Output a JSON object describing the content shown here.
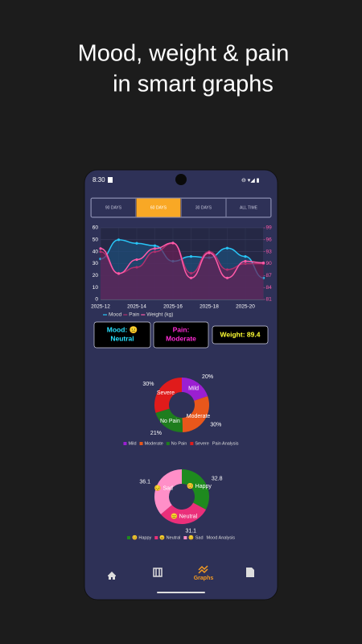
{
  "header": {
    "lines": [
      "Mood, weight & pain",
      "in smart graphs"
    ]
  },
  "status": {
    "time": "8:30"
  },
  "tabs": {
    "items": [
      "90 DAYS",
      "60 DAYS",
      "30 DAYS",
      "ALL TIME"
    ],
    "active": 1
  },
  "chart": {
    "type": "line",
    "categories": [
      "2025-12",
      null,
      "2025-14",
      null,
      "2025-16",
      null,
      "2025-18",
      null,
      "2025-20",
      null
    ],
    "series": [
      {
        "name": "Mood",
        "color": "#29c5f6",
        "values": [
          34,
          50,
          47,
          45,
          32,
          36,
          35,
          43,
          36,
          18
        ],
        "axis": "y",
        "fill": "#1d4f7a"
      },
      {
        "name": "Pain",
        "color": "#b0306e",
        "values": [
          40,
          22,
          27,
          40,
          47,
          22,
          40,
          25,
          30,
          30
        ],
        "axis": "y",
        "fill": "#6a1f55"
      },
      {
        "name": "Weight (kg)",
        "color": "#ff5aa8",
        "values": [
          93.8,
          87.5,
          91,
          93.8,
          95.2,
          86.4,
          92.7,
          86.4,
          90.6,
          90.2
        ],
        "axis": "y2"
      }
    ],
    "ylim": [
      0,
      60
    ],
    "yticks": [
      0,
      10,
      20,
      30,
      40,
      50,
      60
    ],
    "y2lim": [
      81,
      99
    ],
    "y2ticks": [
      81,
      84,
      87,
      90,
      93,
      96,
      99
    ],
    "y2color": "#ff5aa8",
    "grid": true
  },
  "stats": [
    {
      "text": "Mood: 😐 Neutral",
      "color": "#29e0ff"
    },
    {
      "text": "Pain: Moderate",
      "color": "#ff2bd6"
    },
    {
      "text": "Weight: 89.4",
      "color": "#ffff33"
    }
  ],
  "pies": [
    {
      "type": "pie",
      "title": "Pain Analysis",
      "categories": [
        "Mild",
        "Moderate",
        "No Pain",
        "Severe"
      ],
      "values": [
        20,
        30,
        21,
        30
      ],
      "value_labels": [
        "20%",
        "30%",
        "21%",
        "30%"
      ],
      "colors": [
        "#9b1fd1",
        "#e8571b",
        "#1e7d1e",
        "#e01b1b"
      ]
    },
    {
      "type": "pie",
      "title": "Mood Analysis",
      "categories": [
        "😊 Happy",
        "😐 Neutral",
        "😔 Sad"
      ],
      "values": [
        32.8,
        31.1,
        36.1
      ],
      "colors": [
        "#1e8a1e",
        "#ea2f7a",
        "#ff8fc8"
      ]
    }
  ],
  "nav": {
    "active_label": "Graphs"
  }
}
